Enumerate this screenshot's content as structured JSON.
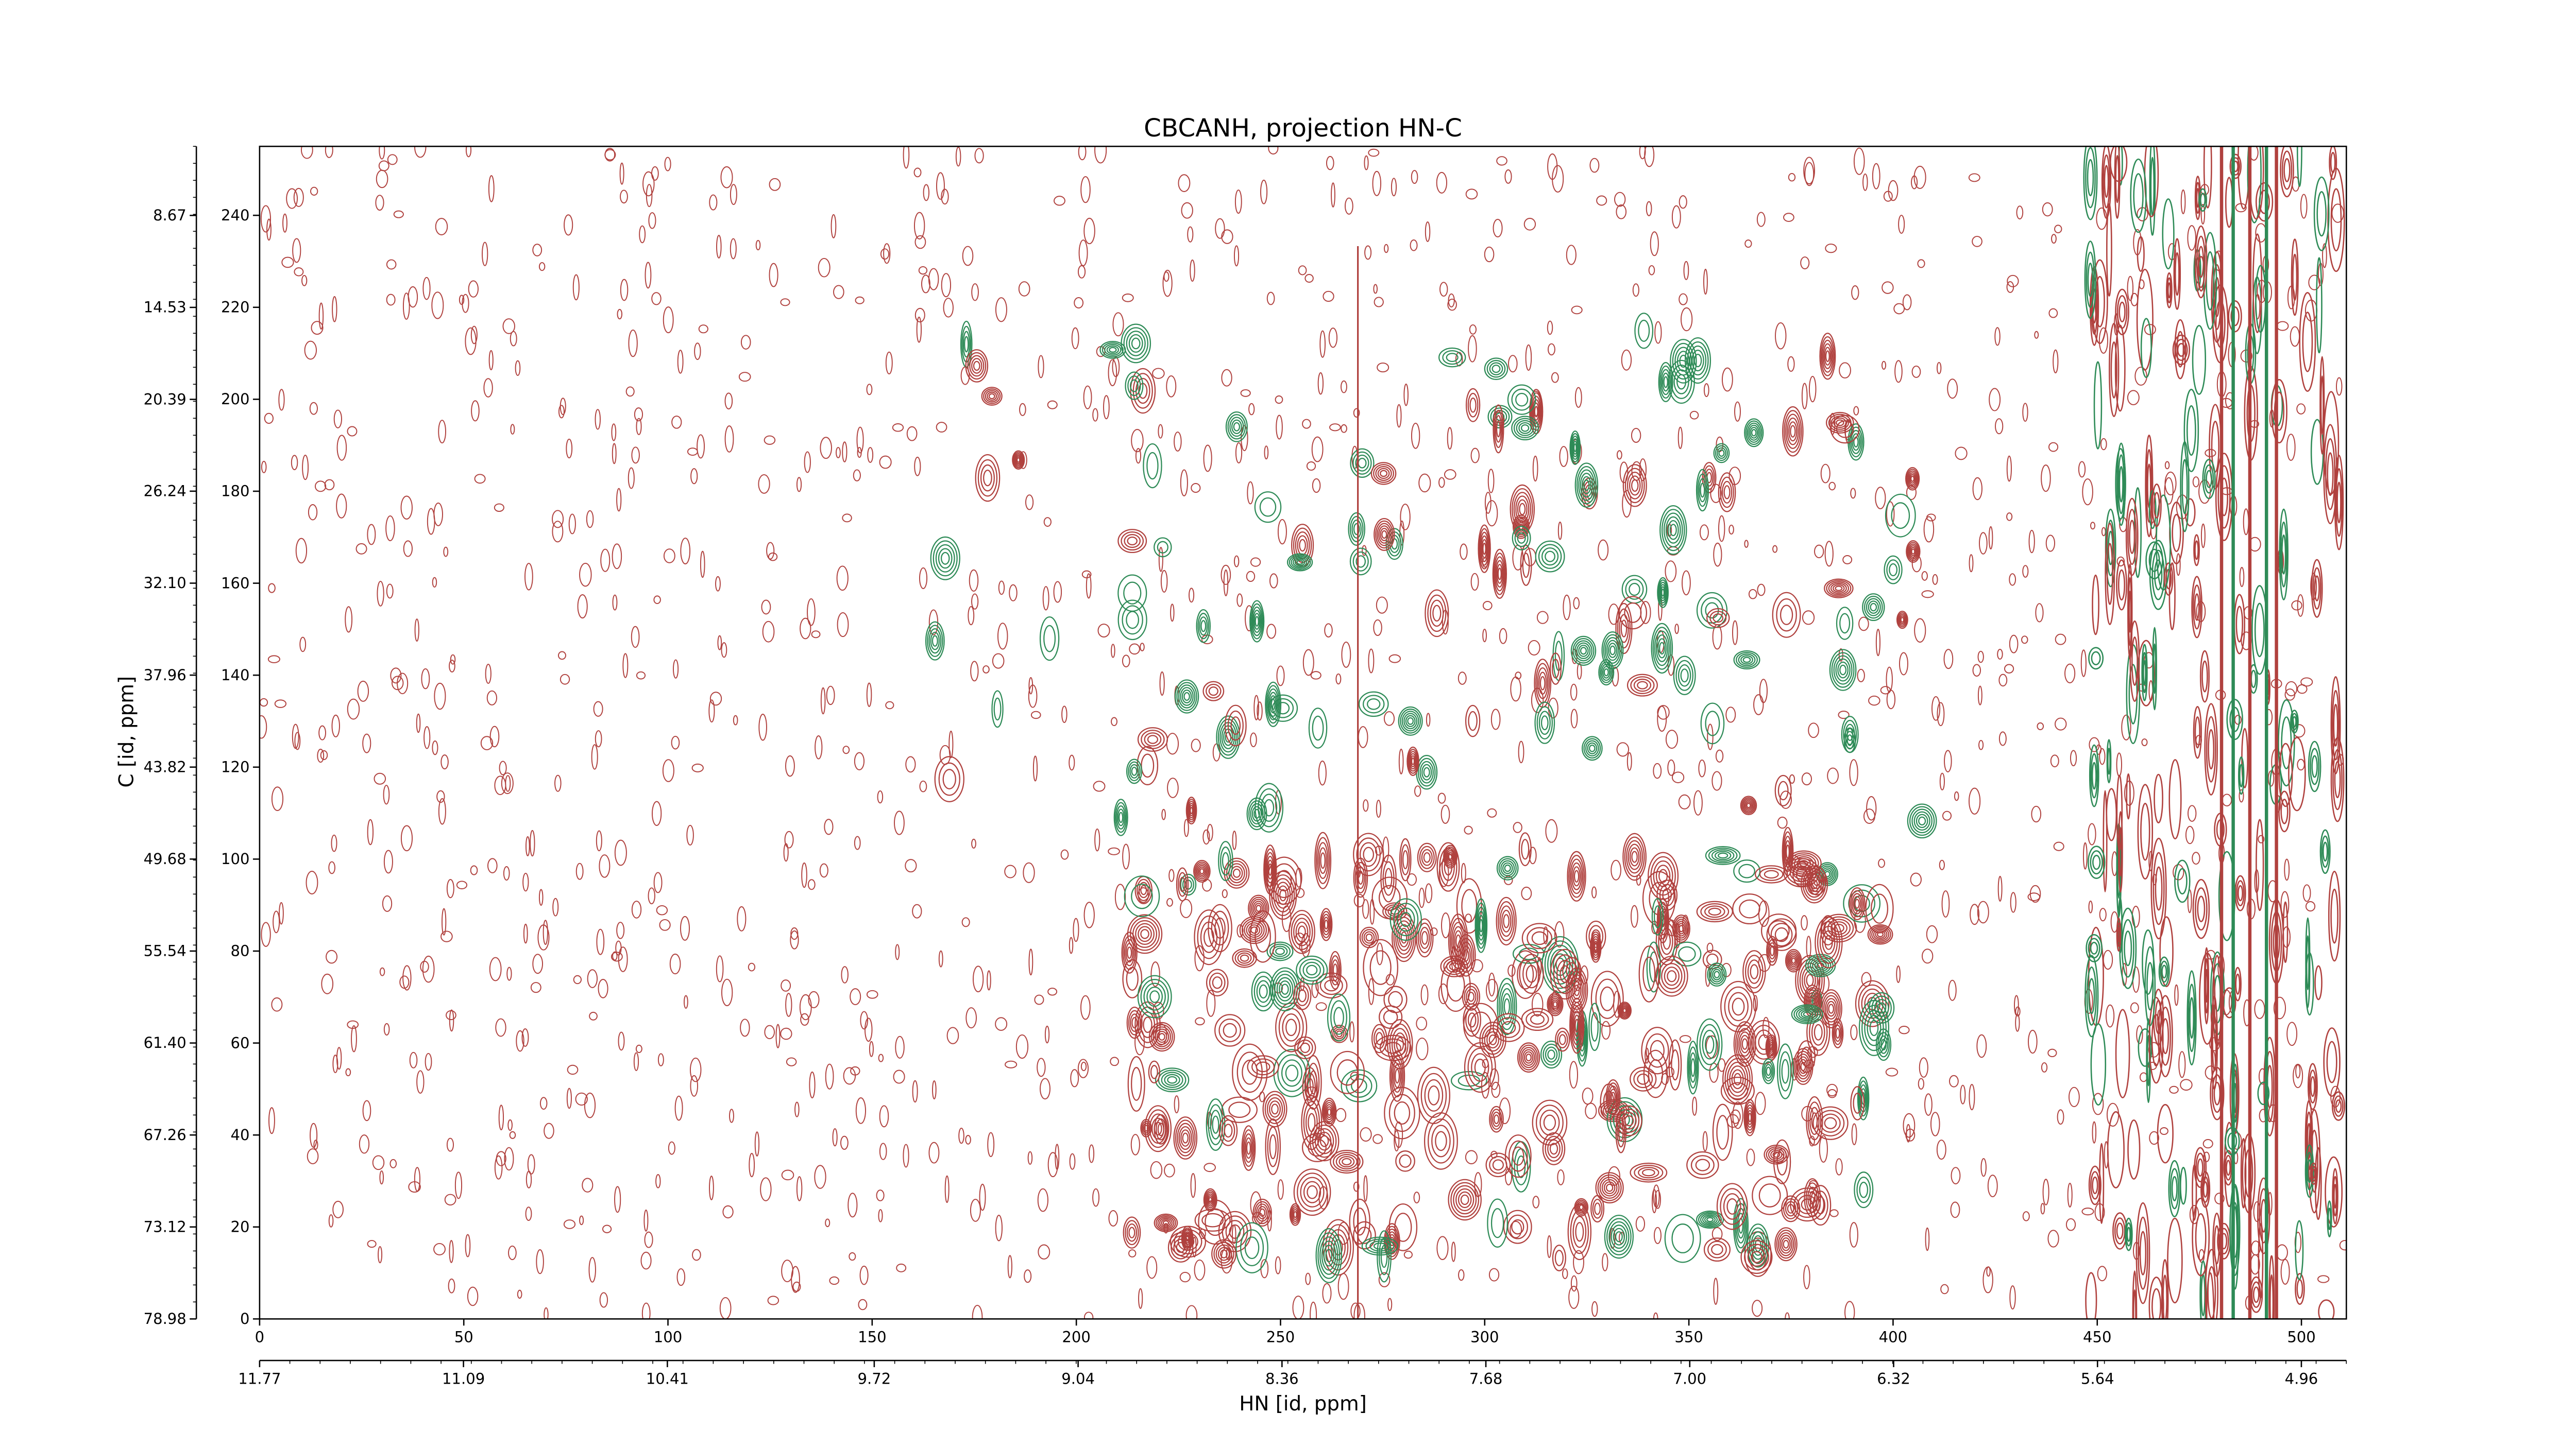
{
  "chart_data": {
    "type": "contour",
    "title": "CBCANH, projection HN-C",
    "x_label": "HN [id, ppm]",
    "y_label": "C [id, ppm]",
    "xlim": [
      0,
      511
    ],
    "xticks": [
      0,
      50,
      100,
      150,
      200,
      250,
      300,
      350,
      400,
      450,
      500
    ],
    "ylim": [
      0,
      255
    ],
    "yticks": [
      0,
      20,
      40,
      60,
      80,
      100,
      120,
      140,
      160,
      180,
      200,
      220,
      240
    ],
    "x2lim": [
      11.77,
      4.81
    ],
    "x2ticks": [
      {
        "value": 11.77,
        "label": "11.77"
      },
      {
        "value": 11.09,
        "label": "11.09"
      },
      {
        "value": 10.41,
        "label": "10.41"
      },
      {
        "value": 9.72,
        "label": "9.72"
      },
      {
        "value": 9.04,
        "label": "9.04"
      },
      {
        "value": 8.36,
        "label": "8.36"
      },
      {
        "value": 7.68,
        "label": "7.68"
      },
      {
        "value": 7.0,
        "label": "7.00"
      },
      {
        "value": 6.32,
        "label": "6.32"
      },
      {
        "value": 5.64,
        "label": "5.64"
      },
      {
        "value": 4.96,
        "label": "4.96"
      }
    ],
    "y2lim": [
      78.98,
      4.27
    ],
    "y2ticks": [
      {
        "value": 8.67,
        "label": "8.67"
      },
      {
        "value": 14.53,
        "label": "14.53"
      },
      {
        "value": 20.39,
        "label": "20.39"
      },
      {
        "value": 26.24,
        "label": "26.24"
      },
      {
        "value": 32.1,
        "label": "32.10"
      },
      {
        "value": 37.96,
        "label": "37.96"
      },
      {
        "value": 43.82,
        "label": "43.82"
      },
      {
        "value": 49.68,
        "label": "49.68"
      },
      {
        "value": 55.54,
        "label": "55.54"
      },
      {
        "value": 61.4,
        "label": "61.40"
      },
      {
        "value": 67.26,
        "label": "67.26"
      },
      {
        "value": 73.12,
        "label": "73.12"
      },
      {
        "value": 78.98,
        "label": "78.98"
      }
    ],
    "positive_color": "#b0413e",
    "negative_color": "#2e8b57"
  }
}
